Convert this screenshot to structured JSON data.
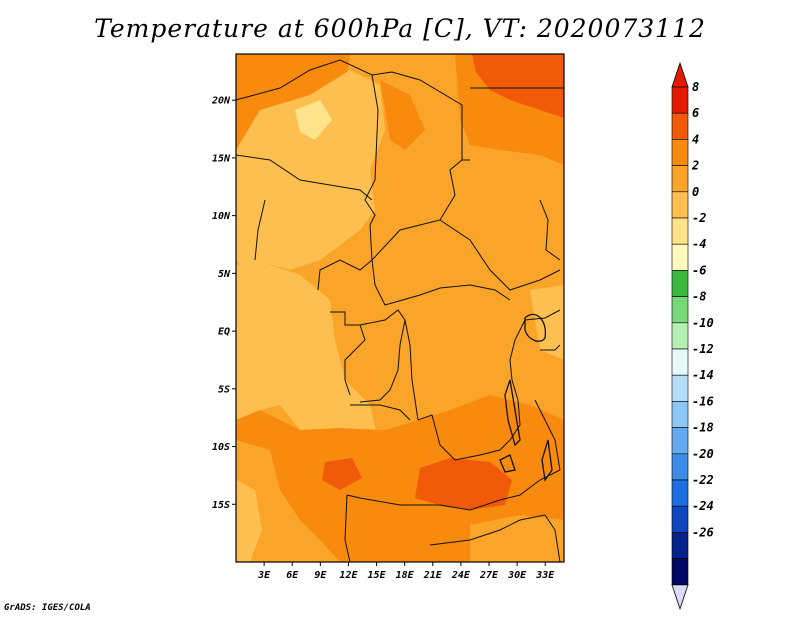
{
  "title": "Temperature at 600hPa [C], VT: 2020073112",
  "credit": "GrADS: IGES/COLA",
  "map": {
    "lon_range": [
      0,
      35
    ],
    "lat_range": [
      -20,
      24
    ],
    "lat_labels": [
      {
        "value": 20,
        "label": "20N"
      },
      {
        "value": 15,
        "label": "15N"
      },
      {
        "value": 10,
        "label": "10N"
      },
      {
        "value": 5,
        "label": "5N"
      },
      {
        "value": 0,
        "label": "EQ"
      },
      {
        "value": -5,
        "label": "5S"
      },
      {
        "value": -10,
        "label": "10S"
      },
      {
        "value": -15,
        "label": "15S"
      }
    ],
    "lon_labels": [
      {
        "value": 3,
        "label": "3E"
      },
      {
        "value": 6,
        "label": "6E"
      },
      {
        "value": 9,
        "label": "9E"
      },
      {
        "value": 12,
        "label": "12E"
      },
      {
        "value": 15,
        "label": "15E"
      },
      {
        "value": 18,
        "label": "18E"
      },
      {
        "value": 21,
        "label": "21E"
      },
      {
        "value": 24,
        "label": "24E"
      },
      {
        "value": 27,
        "label": "27E"
      },
      {
        "value": 30,
        "label": "30E"
      },
      {
        "value": 33,
        "label": "33E"
      }
    ]
  },
  "colorbar": {
    "labels": [
      "8",
      "6",
      "4",
      "2",
      "0",
      "-2",
      "-4",
      "-6",
      "-8",
      "-10",
      "-12",
      "-14",
      "-16",
      "-18",
      "-20",
      "-22",
      "-24",
      "-26"
    ],
    "colors": [
      "#e21b00",
      "#f05a08",
      "#f88a0e",
      "#fba42a",
      "#fdc050",
      "#fee38a",
      "#fff9be",
      "#3cb83c",
      "#78d878",
      "#b4f0b4",
      "#e6fafa",
      "#b4def8",
      "#8cc8f4",
      "#64aaf0",
      "#3c8ce8",
      "#1e6ee0",
      "#0f46be",
      "#06238c",
      "#000864"
    ],
    "top_color": "#e21b00",
    "bottom_color": "#dcdcf8"
  }
}
